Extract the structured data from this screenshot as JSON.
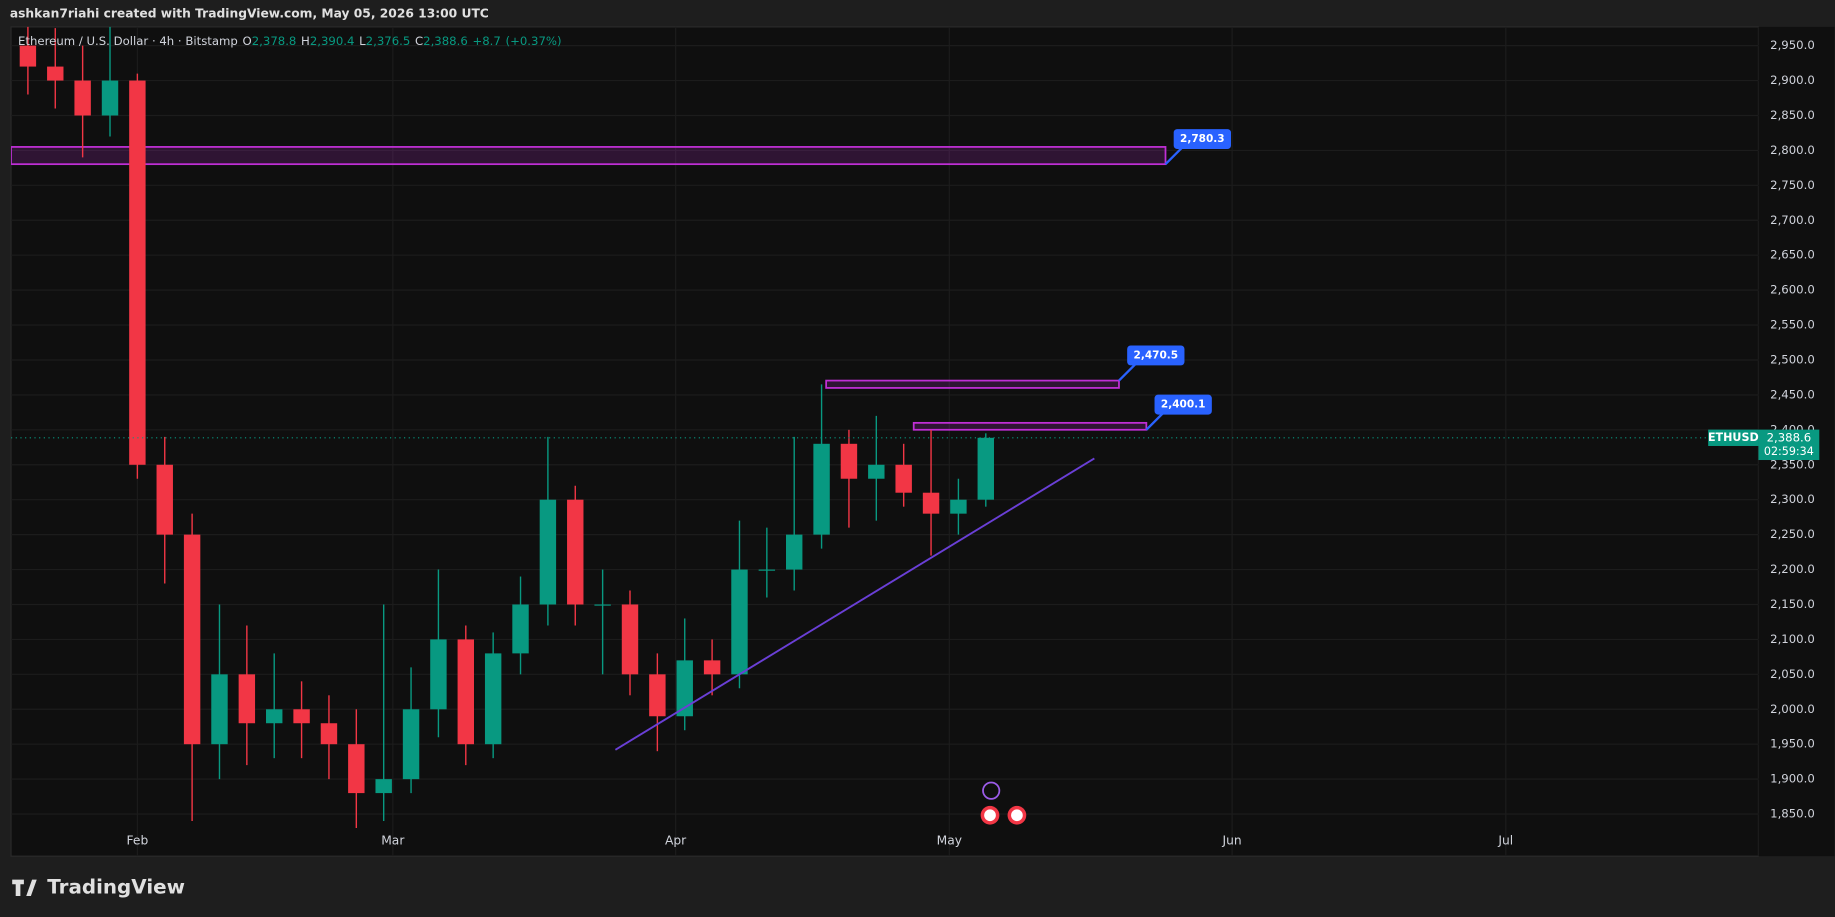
{
  "header": "ashkan7riahi created with TradingView.com, May 05, 2026 13:00 UTC",
  "brand": "TradingView",
  "chart_data": {
    "type": "candlestick",
    "legend": {
      "symbol": "Ethereum / U.S. Dollar · 4h · Bitstamp",
      "open": {
        "value": 2378.8,
        "label": "2,378.8"
      },
      "high": {
        "value": 2390.4,
        "label": "2,390.4"
      },
      "low": {
        "value": 2376.5,
        "label": "2,376.5"
      },
      "close": {
        "value": 2388.6,
        "label": "2,388.6"
      },
      "change": {
        "value": 8.7,
        "label": "+8.7"
      },
      "change_pct": {
        "value": 0.37,
        "label": "(+0.37%)"
      }
    },
    "x": [
      20,
      23,
      26,
      29,
      32,
      35,
      38,
      41,
      44,
      47,
      50,
      53,
      56,
      59,
      62,
      65,
      68,
      71,
      74,
      77,
      80,
      83,
      86,
      89,
      92,
      95,
      98,
      101,
      104,
      107,
      110,
      113,
      116,
      119,
      122,
      125
    ],
    "open": [
      2950,
      2920,
      2900,
      2850,
      2900,
      2350,
      2250,
      1950,
      2050,
      1980,
      2000,
      1980,
      1950,
      1880,
      1900,
      2000,
      2100,
      1950,
      2080,
      2150,
      2300,
      2150,
      2150,
      2050,
      1990,
      2070,
      2050,
      2200,
      2200,
      2250,
      2380,
      2330,
      2350,
      2310,
      2280,
      2300
    ],
    "high": [
      2985,
      2975,
      2950,
      2985,
      2910,
      2390,
      2280,
      2150,
      2120,
      2080,
      2040,
      2020,
      2000,
      2150,
      2060,
      2200,
      2120,
      2110,
      2190,
      2390,
      2320,
      2200,
      2170,
      2080,
      2130,
      2100,
      2270,
      2260,
      2390,
      2465,
      2400,
      2420,
      2380,
      2400,
      2330,
      2395
    ],
    "low": [
      2880,
      2860,
      2790,
      2820,
      2330,
      2180,
      1840,
      1900,
      1920,
      1930,
      1930,
      1900,
      1830,
      1840,
      1880,
      1960,
      1920,
      1930,
      2050,
      2120,
      2120,
      2050,
      2020,
      1940,
      1970,
      2020,
      2030,
      2160,
      2170,
      2230,
      2260,
      2270,
      2290,
      2220,
      2250,
      2290
    ],
    "close": [
      2920,
      2900,
      2850,
      2900,
      2350,
      2250,
      1950,
      2050,
      1980,
      2000,
      1980,
      1950,
      1880,
      1900,
      2000,
      2100,
      1950,
      2080,
      2150,
      2300,
      2150,
      2150,
      2050,
      1990,
      2070,
      2050,
      2200,
      2200,
      2250,
      2380,
      2330,
      2350,
      2310,
      2280,
      2300,
      2388.6
    ],
    "up_color": "#089981",
    "down_color": "#f23645",
    "xlim": [
      18.15,
      209.7
    ],
    "xticks": [
      {
        "value": 32,
        "label": "Feb"
      },
      {
        "value": 60,
        "label": "Mar"
      },
      {
        "value": 91,
        "label": "Apr"
      },
      {
        "value": 121,
        "label": "May"
      },
      {
        "value": 152,
        "label": "Jun"
      },
      {
        "value": 182,
        "label": "Jul"
      }
    ],
    "ylim": [
      1789.7,
      2976.8
    ],
    "yticks": [
      {
        "value": 1850,
        "label": "1,850.0"
      },
      {
        "value": 1900,
        "label": "1,900.0"
      },
      {
        "value": 1950,
        "label": "1,950.0"
      },
      {
        "value": 2000,
        "label": "2,000.0"
      },
      {
        "value": 2050,
        "label": "2,050.0"
      },
      {
        "value": 2100,
        "label": "2,100.0"
      },
      {
        "value": 2150,
        "label": "2,150.0"
      },
      {
        "value": 2200,
        "label": "2,200.0"
      },
      {
        "value": 2250,
        "label": "2,250.0"
      },
      {
        "value": 2300,
        "label": "2,300.0"
      },
      {
        "value": 2350,
        "label": "2,350.0"
      },
      {
        "value": 2400,
        "label": "2,400.0"
      },
      {
        "value": 2450,
        "label": "2,450.0"
      },
      {
        "value": 2500,
        "label": "2,500.0"
      },
      {
        "value": 2550,
        "label": "2,550.0"
      },
      {
        "value": 2600,
        "label": "2,600.0"
      },
      {
        "value": 2650,
        "label": "2,650.0"
      },
      {
        "value": 2700,
        "label": "2,700.0"
      },
      {
        "value": 2750,
        "label": "2,750.0"
      },
      {
        "value": 2800,
        "label": "2,800.0"
      },
      {
        "value": 2850,
        "label": "2,850.0"
      },
      {
        "value": 2900,
        "label": "2,900.0"
      },
      {
        "value": 2950,
        "label": "2,950.0"
      }
    ],
    "grid": true,
    "zones": [
      {
        "x0": 18.15,
        "x1": 144.7,
        "label": {
          "value": 2780.3,
          "label": "2,780.3"
        },
        "other": 2805
      },
      {
        "x0": 107.5,
        "x1": 139.6,
        "label": {
          "value": 2470.5,
          "label": "2,470.5"
        },
        "other": 2460
      },
      {
        "x0": 117.1,
        "x1": 142.6,
        "label": {
          "value": 2400.1,
          "label": "2,400.1"
        },
        "other": 2410
      }
    ],
    "zone_color": "#c02fd6",
    "callout_color": "#2962ff",
    "trendline": {
      "start": [
        84.4,
        1942
      ],
      "end": [
        136.9,
        2359
      ],
      "color": "#6a3fd6"
    },
    "last_price": {
      "symbol": "ETHUSD",
      "price": {
        "value": 2388.6,
        "label": "2,388.6"
      },
      "countdown": "02:59:34",
      "color": "#089981"
    }
  }
}
